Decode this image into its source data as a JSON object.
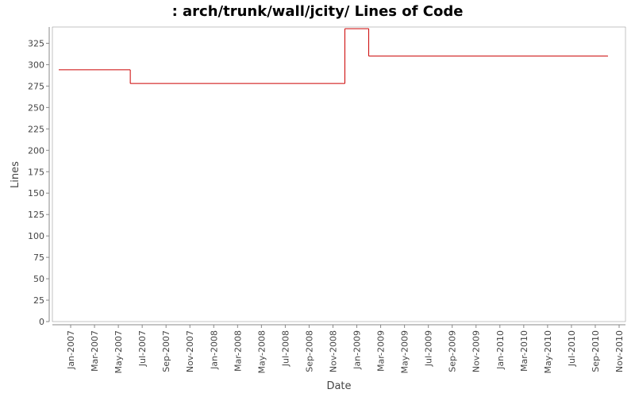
{
  "chart_data": {
    "type": "line",
    "step": true,
    "title": ": arch/trunk/wall/jcity/ Lines of Code",
    "x_label": "Date",
    "y_label": "Lines",
    "x": [
      "2006-12",
      "2007-06",
      "2008-12",
      "2009-02",
      "2010-10"
    ],
    "series": [
      {
        "name": "Lines",
        "color": "#cc0000",
        "values": [
          294,
          278,
          342,
          310,
          310
        ]
      }
    ],
    "xlim": [
      "2006-12",
      "2010-11"
    ],
    "xticks": [
      {
        "value": "2007-01",
        "label": "Jan-2007"
      },
      {
        "value": "2007-03",
        "label": "Mar-2007"
      },
      {
        "value": "2007-05",
        "label": "May-2007"
      },
      {
        "value": "2007-07",
        "label": "Jul-2007"
      },
      {
        "value": "2007-09",
        "label": "Sep-2007"
      },
      {
        "value": "2007-11",
        "label": "Nov-2007"
      },
      {
        "value": "2008-01",
        "label": "Jan-2008"
      },
      {
        "value": "2008-03",
        "label": "Mar-2008"
      },
      {
        "value": "2008-05",
        "label": "May-2008"
      },
      {
        "value": "2008-07",
        "label": "Jul-2008"
      },
      {
        "value": "2008-09",
        "label": "Sep-2008"
      },
      {
        "value": "2008-11",
        "label": "Nov-2008"
      },
      {
        "value": "2009-01",
        "label": "Jan-2009"
      },
      {
        "value": "2009-03",
        "label": "Mar-2009"
      },
      {
        "value": "2009-05",
        "label": "May-2009"
      },
      {
        "value": "2009-07",
        "label": "Jul-2009"
      },
      {
        "value": "2009-09",
        "label": "Sep-2009"
      },
      {
        "value": "2009-11",
        "label": "Nov-2009"
      },
      {
        "value": "2010-01",
        "label": "Jan-2010"
      },
      {
        "value": "2010-03",
        "label": "Mar-2010"
      },
      {
        "value": "2010-05",
        "label": "May-2010"
      },
      {
        "value": "2010-07",
        "label": "Jul-2010"
      },
      {
        "value": "2010-09",
        "label": "Sep-2010"
      },
      {
        "value": "2010-11",
        "label": "Nov-2010"
      }
    ],
    "ylim": [
      0,
      344
    ],
    "yticks": [
      0,
      25,
      50,
      75,
      100,
      125,
      150,
      175,
      200,
      225,
      250,
      275,
      300,
      325
    ],
    "grid": false
  }
}
